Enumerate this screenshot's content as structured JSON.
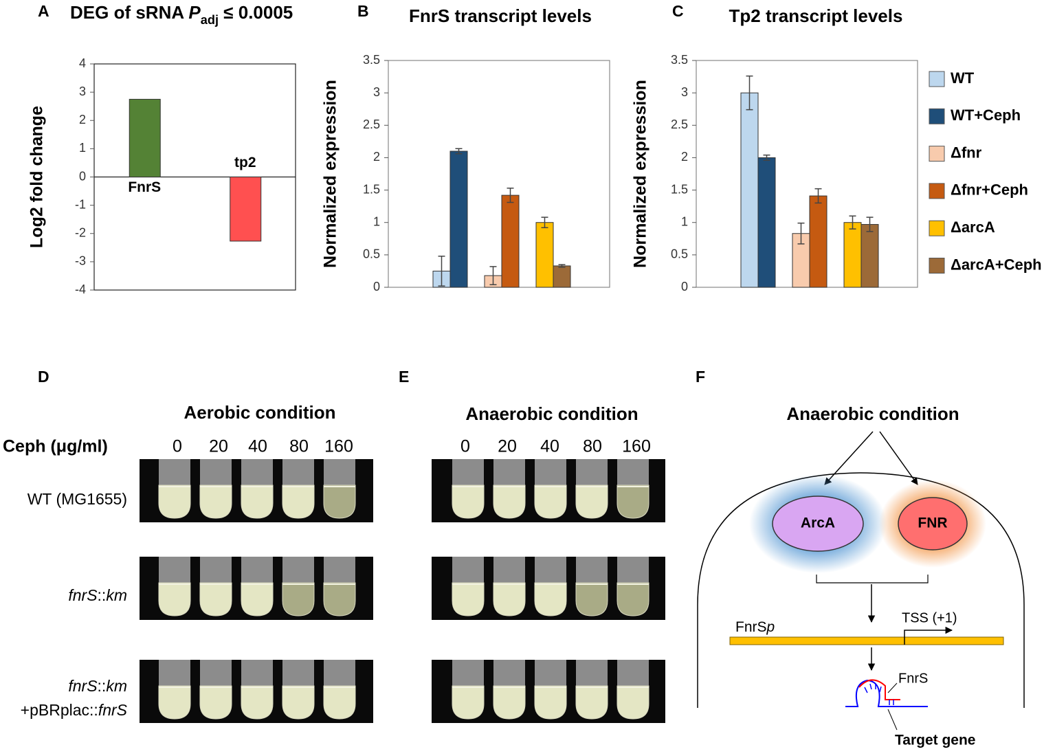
{
  "panel_labels": [
    "A",
    "B",
    "C",
    "D",
    "E",
    "F"
  ],
  "chart_data": [
    {
      "type": "bar",
      "title": [
        {
          "text": "DEG of sRNA "
        },
        {
          "text": "P",
          "italic": true
        },
        {
          "text": "adj",
          "sub": true
        },
        {
          "text": " ≤ 0.0005"
        }
      ],
      "ylabel": "Log2 fold change",
      "categories": [
        "FnrS",
        "tp2"
      ],
      "values": [
        2.75,
        -2.27
      ],
      "colors": [
        "#548235",
        "#ff5050"
      ],
      "ylim": [
        -4,
        4
      ],
      "yticks": [
        4,
        3,
        2,
        1,
        0,
        -1,
        -2,
        -3,
        -4
      ]
    },
    {
      "type": "grouped_bar",
      "title": [
        {
          "text": "FnrS transcript levels"
        }
      ],
      "ylabel": "Normalized expression",
      "categories": [
        null,
        null,
        null
      ],
      "ylim": [
        0,
        3.5
      ],
      "yticks": [
        0,
        0.5,
        1,
        1.5,
        2,
        2.5,
        3,
        3.5
      ],
      "series": [
        {
          "name": "WT",
          "color": "#bdd7ee",
          "values": [
            0.25,
            null,
            null
          ],
          "errors": [
            0.23,
            null,
            null
          ]
        },
        {
          "name": "WT+Ceph",
          "color": "#1f4e79",
          "values": [
            2.1,
            null,
            null
          ],
          "errors": [
            0.04,
            null,
            null
          ]
        },
        {
          "name": "Δfnr",
          "color": "#f8cbad",
          "values": [
            null,
            0.18,
            null
          ],
          "errors": [
            null,
            0.14,
            null
          ]
        },
        {
          "name": "Δfnr+Ceph",
          "color": "#c55a11",
          "values": [
            null,
            1.42,
            null
          ],
          "errors": [
            null,
            0.11,
            null
          ]
        },
        {
          "name": "ΔarcA",
          "color": "#ffc000",
          "values": [
            null,
            null,
            1.0
          ],
          "errors": [
            null,
            null,
            0.08
          ]
        },
        {
          "name": "ΔarcA+Ceph",
          "color": "#9c6a38",
          "values": [
            null,
            null,
            0.33
          ],
          "errors": [
            null,
            null,
            0.02
          ]
        }
      ]
    },
    {
      "type": "grouped_bar",
      "title": [
        {
          "text": "Tp2 transcript levels"
        }
      ],
      "ylabel": "Normalized expression",
      "categories": [
        null,
        null,
        null
      ],
      "ylim": [
        0,
        3.5
      ],
      "yticks": [
        0,
        0.5,
        1,
        1.5,
        2,
        2.5,
        3,
        3.5
      ],
      "legend": "right",
      "series": [
        {
          "name": "WT",
          "color": "#bdd7ee",
          "values": [
            3.0,
            null,
            null
          ],
          "errors": [
            0.26,
            null,
            null
          ]
        },
        {
          "name": "WT+Ceph",
          "color": "#1f4e79",
          "values": [
            2.0,
            null,
            null
          ],
          "errors": [
            0.04,
            null,
            null
          ]
        },
        {
          "name": "Δfnr",
          "color": "#f8cbad",
          "values": [
            null,
            0.83,
            null
          ],
          "errors": [
            null,
            0.16,
            null
          ]
        },
        {
          "name": "Δfnr+Ceph",
          "color": "#c55a11",
          "values": [
            null,
            1.41,
            null
          ],
          "errors": [
            null,
            0.11,
            null
          ]
        },
        {
          "name": "ΔarcA",
          "color": "#ffc000",
          "values": [
            null,
            null,
            1.0
          ],
          "errors": [
            null,
            null,
            0.1
          ]
        },
        {
          "name": "ΔarcA+Ceph",
          "color": "#9c6a38",
          "values": [
            null,
            null,
            0.97
          ],
          "errors": [
            null,
            null,
            0.11
          ]
        }
      ]
    }
  ],
  "tubes": {
    "aerobic": {
      "title": "Aerobic condition",
      "concentrations": [
        "0",
        "20",
        "40",
        "80",
        "160"
      ]
    },
    "anaerobic": {
      "title": "Anaerobic condition",
      "concentrations": [
        "0",
        "20",
        "40",
        "80",
        "160"
      ]
    },
    "ceph_label": "Ceph (μg/ml)",
    "rows": [
      [
        [
          {
            "text": "WT (MG1655)"
          }
        ]
      ],
      [
        [
          {
            "text": "fnrS",
            "italic": true
          },
          {
            "text": "::"
          },
          {
            "text": "km",
            "italic": true
          }
        ]
      ],
      [
        [
          {
            "text": "fnrS",
            "italic": true
          },
          {
            "text": "::"
          },
          {
            "text": "km",
            "italic": true
          }
        ],
        [
          {
            "text": "+pBRplac::"
          },
          {
            "text": "fnrS",
            "italic": true
          }
        ]
      ]
    ]
  },
  "diagram": {
    "title": "Anaerobic condition",
    "arca": "ArcA",
    "fnr": "FNR",
    "promoter": [
      {
        "text": "FnrS"
      },
      {
        "text": "p",
        "italic": true
      }
    ],
    "tss": "TSS (+1)",
    "srna": "FnrS",
    "target": "Target gene"
  }
}
